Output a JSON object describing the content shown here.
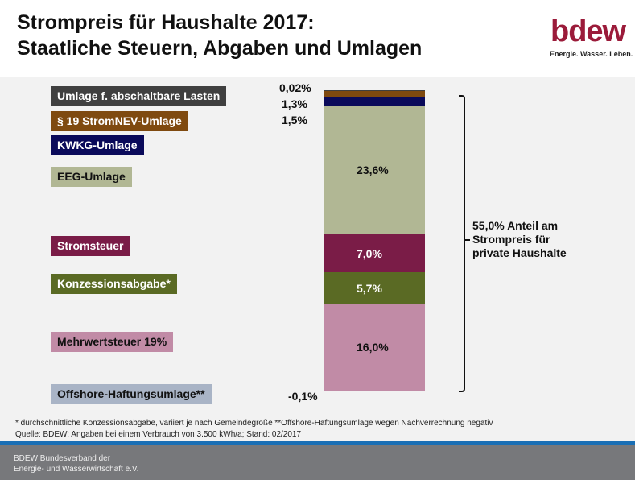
{
  "title_line1": "Strompreis für Haushalte 2017:",
  "title_line2": "Staatliche Steuern, Abgaben und Umlagen",
  "logo": {
    "text": "bdew",
    "slogan": "Energie. Wasser. Leben.",
    "color": "#9b1b3a"
  },
  "chart_data": {
    "type": "bar",
    "stacked": true,
    "unit": "%",
    "series": [
      {
        "name": "Mehrwertsteuer 19%",
        "value": 16.0,
        "label": "16,0%",
        "color": "#c18ba6"
      },
      {
        "name": "Konzessionsabgabe*",
        "value": 5.7,
        "label": "5,7%",
        "color": "#5a6a24"
      },
      {
        "name": "Stromsteuer",
        "value": 7.0,
        "label": "7,0%",
        "color": "#7a1c47"
      },
      {
        "name": "EEG-Umlage",
        "value": 23.6,
        "label": "23,6%",
        "color": "#b1b794"
      },
      {
        "name": "KWKG-Umlage",
        "value": 1.5,
        "label": "1,5%",
        "color": "#0a0a5a"
      },
      {
        "name": "§ 19 StromNEV-Umlage",
        "value": 1.3,
        "label": "1,3%",
        "color": "#7f4a10"
      },
      {
        "name": "Umlage f. abschaltbare Lasten",
        "value": 0.02,
        "label": "0,02%",
        "color": "#404040"
      },
      {
        "name": "Offshore-Haftungsumlage**",
        "value": -0.1,
        "label": "-0,1%",
        "color": "#a9b4c6"
      }
    ],
    "total_annotation": [
      "55,0% Anteil am",
      "Strompreis für",
      "private Haushalte"
    ]
  },
  "footnote1": "* durchschnittliche Konzessionsabgabe, variiert je nach  Gemeindegröße    **Offshore-Haftungsumlage wegen Nachverrechnung  negativ",
  "footnote2": "Quelle: BDEW; Angaben bei einem Verbrauch von 3.500  kWh/a; Stand: 02/2017",
  "footer": [
    "BDEW Bundesverband der",
    "Energie- und Wasserwirtschaft e.V."
  ]
}
